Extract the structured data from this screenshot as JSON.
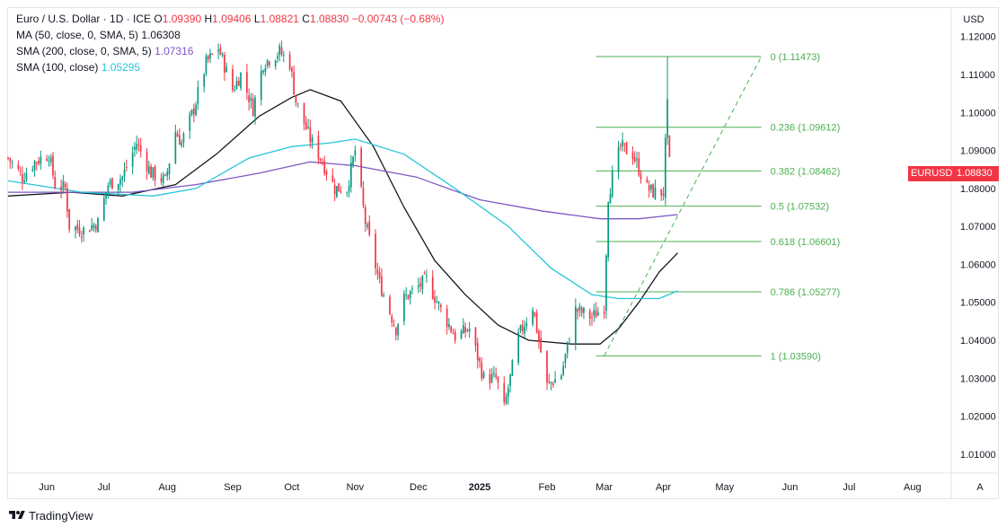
{
  "legend": {
    "title": "Euro / U.S. Dollar · 1D · ICE",
    "ohlc": [
      {
        "label": "O",
        "value": "1.09390"
      },
      {
        "label": "H",
        "value": "1.09406"
      },
      {
        "label": "L",
        "value": "1.08821"
      },
      {
        "label": "C",
        "value": "1.08830"
      }
    ],
    "change": "−0.00743 (−0.68%)",
    "indicators": [
      {
        "label": "MA (50, close, 0, SMA, 5)",
        "value": "1.06308",
        "color": "#131722"
      },
      {
        "label": "SMA (200, close, 0, SMA, 5)",
        "value": "1.07316",
        "color": "#7e57c2"
      },
      {
        "label": "SMA (100, close)",
        "value": "1.05295",
        "color": "#26c6da"
      }
    ]
  },
  "currency_button": "USD",
  "auto_button": "A",
  "price_tag": {
    "symbol": "EURUSD",
    "price": "1.08830",
    "color": "#f23645"
  },
  "footer": {
    "brand": "TradingView"
  },
  "chart_data": {
    "type": "candlestick",
    "title": "Euro / U.S. Dollar · 1D · ICE",
    "y_range": [
      1.005,
      1.1275
    ],
    "y_ticks": [
      {
        "value": 1.12,
        "label": "1.12000"
      },
      {
        "value": 1.11,
        "label": "1.11000"
      },
      {
        "value": 1.1,
        "label": "1.10000"
      },
      {
        "value": 1.09,
        "label": "1.09000"
      },
      {
        "value": 1.08,
        "label": "1.08000"
      },
      {
        "value": 1.07,
        "label": "1.07000"
      },
      {
        "value": 1.06,
        "label": "1.06000"
      },
      {
        "value": 1.05,
        "label": "1.05000"
      },
      {
        "value": 1.04,
        "label": "1.04000"
      },
      {
        "value": 1.03,
        "label": "1.03000"
      },
      {
        "value": 1.02,
        "label": "1.02000"
      },
      {
        "value": 1.01,
        "label": "1.01000"
      }
    ],
    "x_ticks": [
      {
        "date": "2024-06-03",
        "label": "Jun",
        "bold": false
      },
      {
        "date": "2024-07-01",
        "label": "Jul",
        "bold": false
      },
      {
        "date": "2024-08-01",
        "label": "Aug",
        "bold": false
      },
      {
        "date": "2024-09-02",
        "label": "Sep",
        "bold": false
      },
      {
        "date": "2024-10-01",
        "label": "Oct",
        "bold": false
      },
      {
        "date": "2024-11-01",
        "label": "Nov",
        "bold": false
      },
      {
        "date": "2024-12-02",
        "label": "Dec",
        "bold": false
      },
      {
        "date": "2025-01-01",
        "label": "2025",
        "bold": true
      },
      {
        "date": "2025-02-03",
        "label": "Feb",
        "bold": false
      },
      {
        "date": "2025-03-03",
        "label": "Mar",
        "bold": false
      },
      {
        "date": "2025-04-01",
        "label": "Apr",
        "bold": false
      },
      {
        "date": "2025-05-01",
        "label": "May",
        "bold": false
      },
      {
        "date": "2025-06-02",
        "label": "Jun",
        "bold": false
      },
      {
        "date": "2025-07-01",
        "label": "Jul",
        "bold": false
      },
      {
        "date": "2025-08-01",
        "label": "Aug",
        "bold": false
      }
    ],
    "price_path": [
      [
        "2024-05-15",
        1.088
      ],
      [
        "2024-05-22",
        1.083
      ],
      [
        "2024-05-28",
        1.087
      ],
      [
        "2024-06-04",
        1.089
      ],
      [
        "2024-06-07",
        1.081
      ],
      [
        "2024-06-12",
        1.08
      ],
      [
        "2024-06-14",
        1.07
      ],
      [
        "2024-06-21",
        1.069
      ],
      [
        "2024-06-28",
        1.071
      ],
      [
        "2024-07-03",
        1.081
      ],
      [
        "2024-07-10",
        1.083
      ],
      [
        "2024-07-17",
        1.092
      ],
      [
        "2024-07-24",
        1.084
      ],
      [
        "2024-07-31",
        1.082
      ],
      [
        "2024-08-05",
        1.095
      ],
      [
        "2024-08-08",
        1.092
      ],
      [
        "2024-08-14",
        1.101
      ],
      [
        "2024-08-20",
        1.113
      ],
      [
        "2024-08-26",
        1.117
      ],
      [
        "2024-09-02",
        1.106
      ],
      [
        "2024-09-06",
        1.11
      ],
      [
        "2024-09-12",
        1.101
      ],
      [
        "2024-09-17",
        1.113
      ],
      [
        "2024-09-25",
        1.116
      ],
      [
        "2024-09-30",
        1.113
      ],
      [
        "2024-10-03",
        1.103
      ],
      [
        "2024-10-10",
        1.093
      ],
      [
        "2024-10-16",
        1.087
      ],
      [
        "2024-10-22",
        1.08
      ],
      [
        "2024-10-28",
        1.08
      ],
      [
        "2024-11-01",
        1.09
      ],
      [
        "2024-11-06",
        1.071
      ],
      [
        "2024-11-13",
        1.055
      ],
      [
        "2024-11-21",
        1.043
      ],
      [
        "2024-11-25",
        1.051
      ],
      [
        "2024-12-06",
        1.056
      ],
      [
        "2024-12-13",
        1.048
      ],
      [
        "2024-12-20",
        1.041
      ],
      [
        "2024-12-27",
        1.043
      ],
      [
        "2025-01-03",
        1.03
      ],
      [
        "2025-01-09",
        1.03
      ],
      [
        "2025-01-13",
        1.022
      ],
      [
        "2025-01-20",
        1.041
      ],
      [
        "2025-01-27",
        1.049
      ],
      [
        "2025-02-03",
        1.028
      ],
      [
        "2025-02-10",
        1.031
      ],
      [
        "2025-02-17",
        1.048
      ],
      [
        "2025-02-25",
        1.046
      ],
      [
        "2025-03-03",
        1.049
      ],
      [
        "2025-03-05",
        1.078
      ],
      [
        "2025-03-07",
        1.083
      ],
      [
        "2025-03-11",
        1.091
      ],
      [
        "2025-03-17",
        1.089
      ],
      [
        "2025-03-24",
        1.08
      ],
      [
        "2025-03-27",
        1.079
      ],
      [
        "2025-04-01",
        1.079
      ],
      [
        "2025-04-03",
        1.104
      ],
      [
        "2025-04-04",
        1.0883
      ]
    ],
    "series": [
      {
        "name": "MA (50, close, 0, SMA, 5)",
        "color": "#131722",
        "points": [
          [
            "2024-05-15",
            1.078
          ],
          [
            "2024-06-15",
            1.079
          ],
          [
            "2024-07-10",
            1.078
          ],
          [
            "2024-08-05",
            1.081
          ],
          [
            "2024-08-25",
            1.089
          ],
          [
            "2024-09-15",
            1.099
          ],
          [
            "2024-10-01",
            1.104
          ],
          [
            "2024-10-10",
            1.106
          ],
          [
            "2024-10-25",
            1.103
          ],
          [
            "2024-11-10",
            1.091
          ],
          [
            "2024-11-25",
            1.075
          ],
          [
            "2024-12-10",
            1.061
          ],
          [
            "2024-12-25",
            1.052
          ],
          [
            "2025-01-10",
            1.044
          ],
          [
            "2025-01-25",
            1.04
          ],
          [
            "2025-02-15",
            1.039
          ],
          [
            "2025-03-01",
            1.039
          ],
          [
            "2025-03-10",
            1.043
          ],
          [
            "2025-03-20",
            1.05
          ],
          [
            "2025-03-30",
            1.058
          ],
          [
            "2025-04-08",
            1.063
          ]
        ]
      },
      {
        "name": "SMA (200, close, 0, SMA, 5)",
        "color": "#7e57c2",
        "points": [
          [
            "2024-05-15",
            1.079
          ],
          [
            "2024-06-15",
            1.079
          ],
          [
            "2024-07-15",
            1.079
          ],
          [
            "2024-08-15",
            1.081
          ],
          [
            "2024-09-15",
            1.084
          ],
          [
            "2024-10-10",
            1.087
          ],
          [
            "2024-11-01",
            1.086
          ],
          [
            "2024-12-01",
            1.083
          ],
          [
            "2025-01-01",
            1.077
          ],
          [
            "2025-02-01",
            1.074
          ],
          [
            "2025-03-01",
            1.072
          ],
          [
            "2025-03-20",
            1.072
          ],
          [
            "2025-04-08",
            1.0731
          ]
        ]
      },
      {
        "name": "SMA (100, close)",
        "color": "#26c6da",
        "points": [
          [
            "2024-05-15",
            1.082
          ],
          [
            "2024-06-20",
            1.079
          ],
          [
            "2024-07-25",
            1.078
          ],
          [
            "2024-08-15",
            1.08
          ],
          [
            "2024-09-10",
            1.088
          ],
          [
            "2024-10-01",
            1.091
          ],
          [
            "2024-10-20",
            1.092
          ],
          [
            "2024-11-01",
            1.093
          ],
          [
            "2024-11-25",
            1.089
          ],
          [
            "2024-12-20",
            1.08
          ],
          [
            "2025-01-15",
            1.07
          ],
          [
            "2025-02-05",
            1.059
          ],
          [
            "2025-02-25",
            1.052
          ],
          [
            "2025-03-10",
            1.051
          ],
          [
            "2025-03-30",
            1.051
          ],
          [
            "2025-04-08",
            1.053
          ]
        ]
      }
    ],
    "fibonacci": {
      "color": "#4caf50",
      "levels": [
        {
          "value": 1.11473,
          "label": "0 (1.11473)"
        },
        {
          "value": 1.09612,
          "label": "0.236 (1.09612)"
        },
        {
          "value": 1.08462,
          "label": "0.382 (1.08462)"
        },
        {
          "value": 1.07532,
          "label": "0.5 (1.07532)"
        },
        {
          "value": 1.06601,
          "label": "0.618 (1.06601)"
        },
        {
          "value": 1.05277,
          "label": "0.786 (1.05277)"
        },
        {
          "value": 1.0359,
          "label": "1 (1.03590)"
        }
      ],
      "trend_line": {
        "from": [
          "2025-03-03",
          1.0359
        ],
        "to": [
          "2025-05-19",
          1.11473
        ]
      }
    },
    "colors": {
      "up": "#089981",
      "down": "#f23645"
    }
  }
}
